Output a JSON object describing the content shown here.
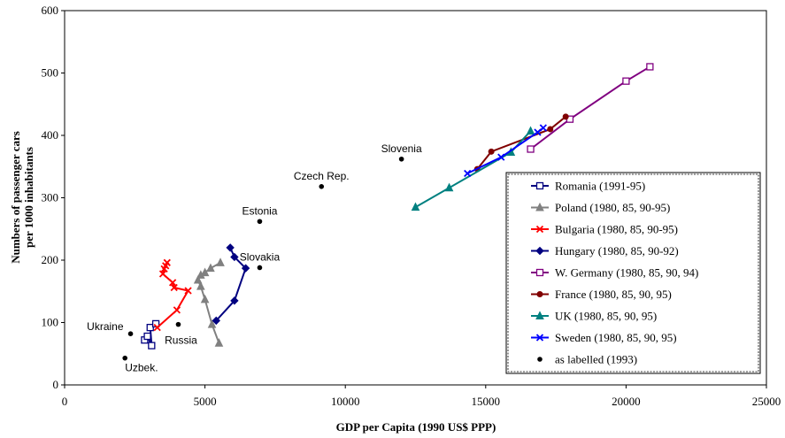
{
  "chart_data": {
    "type": "scatter",
    "xlabel": "GDP per Capita (1990 US$ PPP)",
    "ylabel_line1": "Numbers of passenger cars",
    "ylabel_line2": "per 1000 inhabitants",
    "xlim": [
      0,
      25000
    ],
    "ylim": [
      0,
      600
    ],
    "xticks": [
      0,
      5000,
      10000,
      15000,
      20000,
      25000
    ],
    "yticks": [
      0,
      100,
      200,
      300,
      400,
      500,
      600
    ],
    "xtick_labels": [
      "0",
      "5000",
      "10000",
      "15000",
      "20000",
      "25000"
    ],
    "ytick_labels": [
      "0",
      "100",
      "200",
      "300",
      "400",
      "500",
      "600"
    ],
    "grid": false,
    "legend_position": "right",
    "series": [
      {
        "name": "Romania (1991-95)",
        "color": "#000080",
        "marker": "square-open",
        "points": [
          [
            2850,
            72
          ],
          [
            2950,
            78
          ],
          [
            3100,
            63
          ],
          [
            3050,
            92
          ],
          [
            3250,
            98
          ]
        ]
      },
      {
        "name": "Poland (1980, 85, 90-95)",
        "color": "#808080",
        "marker": "triangle",
        "points": [
          [
            5500,
            67
          ],
          [
            5250,
            97
          ],
          [
            5000,
            137
          ],
          [
            4850,
            158
          ],
          [
            4750,
            168
          ],
          [
            4850,
            176
          ],
          [
            5000,
            180
          ],
          [
            5200,
            187
          ],
          [
            5550,
            196
          ]
        ]
      },
      {
        "name": "Bulgaria (1980, 85, 90-95)",
        "color": "#ff0000",
        "marker": "x",
        "points": [
          [
            3300,
            92
          ],
          [
            4000,
            120
          ],
          [
            4400,
            151
          ],
          [
            3900,
            156
          ],
          [
            3850,
            164
          ],
          [
            3500,
            178
          ],
          [
            3550,
            186
          ],
          [
            3600,
            191
          ],
          [
            3650,
            196
          ]
        ]
      },
      {
        "name": "Hungary (1980, 85, 90-92)",
        "color": "#000080",
        "marker": "diamond",
        "points": [
          [
            5400,
            103
          ],
          [
            6050,
            135
          ],
          [
            6450,
            187
          ],
          [
            6050,
            205
          ],
          [
            5900,
            220
          ]
        ]
      },
      {
        "name": "W. Germany (1980, 85, 90, 94)",
        "color": "#800080",
        "marker": "square-open",
        "points": [
          [
            16600,
            378
          ],
          [
            18000,
            426
          ],
          [
            20000,
            487
          ],
          [
            20850,
            510
          ]
        ]
      },
      {
        "name": "France (1980, 85, 90, 95)",
        "color": "#800000",
        "marker": "circle",
        "points": [
          [
            14700,
            346
          ],
          [
            15200,
            374
          ],
          [
            17300,
            410
          ],
          [
            17850,
            430
          ]
        ]
      },
      {
        "name": "UK (1980, 85, 90, 95)",
        "color": "#008080",
        "marker": "triangle",
        "points": [
          [
            12500,
            285
          ],
          [
            13700,
            316
          ],
          [
            15900,
            373
          ],
          [
            16600,
            407
          ]
        ]
      },
      {
        "name": "Sweden (1980, 85, 90, 95)",
        "color": "#0000ff",
        "marker": "x",
        "points": [
          [
            14350,
            339
          ],
          [
            15550,
            365
          ],
          [
            16850,
            405
          ],
          [
            17050,
            412
          ]
        ]
      },
      {
        "name": "as labelled (1993)",
        "color": "#000000",
        "marker": "dot",
        "points": [
          {
            "x": 2150,
            "y": 43,
            "label": "Uzbek.",
            "anchor": "below-right"
          },
          {
            "x": 2350,
            "y": 82,
            "label": "Ukraine",
            "anchor": "left"
          },
          {
            "x": 4050,
            "y": 97,
            "label": "Russia",
            "anchor": "below"
          },
          {
            "x": 6950,
            "y": 188,
            "label": "Slovakia",
            "anchor": "above"
          },
          {
            "x": 6950,
            "y": 262,
            "label": "Estonia",
            "anchor": "above"
          },
          {
            "x": 9150,
            "y": 318,
            "label": "Czech Rep.",
            "anchor": "above"
          },
          {
            "x": 12000,
            "y": 362,
            "label": "Slovenia",
            "anchor": "above"
          }
        ]
      }
    ]
  }
}
